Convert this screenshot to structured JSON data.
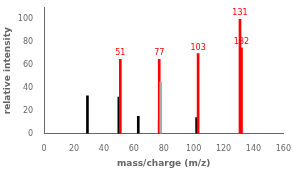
{
  "chart_data": {
    "type": "bar",
    "x": [
      29,
      50,
      51,
      63,
      77,
      77,
      78,
      102,
      103,
      131,
      132
    ],
    "values": [
      33,
      32,
      65,
      15,
      12,
      65,
      45,
      14,
      70,
      100,
      75
    ],
    "colors": [
      "#000000",
      "#000000",
      "#ff0000",
      "#000000",
      "#000000",
      "#ff0000",
      "#aaaaaa",
      "#000000",
      "#ff0000",
      "#ff0000",
      "#ff0000"
    ],
    "annotations": [
      {
        "x": 51,
        "y": 65,
        "text": "51",
        "color": "#ff0000"
      },
      {
        "x": 77,
        "y": 65,
        "text": "77",
        "color": "#ff0000"
      },
      {
        "x": 103,
        "y": 70,
        "text": "103",
        "color": "#ff0000"
      },
      {
        "x": 131,
        "y": 100,
        "text": "131",
        "color": "#ff0000"
      },
      {
        "x": 132,
        "y": 75,
        "text": "132",
        "color": "#ff0000"
      }
    ],
    "xlabel": "mass/charge (m/z)",
    "ylabel": "relative intensity",
    "xlim": [
      0,
      160
    ],
    "ylim": [
      0,
      110
    ],
    "xticks": [
      0,
      20,
      40,
      60,
      80,
      100,
      120,
      140,
      160
    ],
    "yticks": [
      0,
      20,
      40,
      60,
      80,
      100
    ],
    "grid": false,
    "legend": false
  }
}
